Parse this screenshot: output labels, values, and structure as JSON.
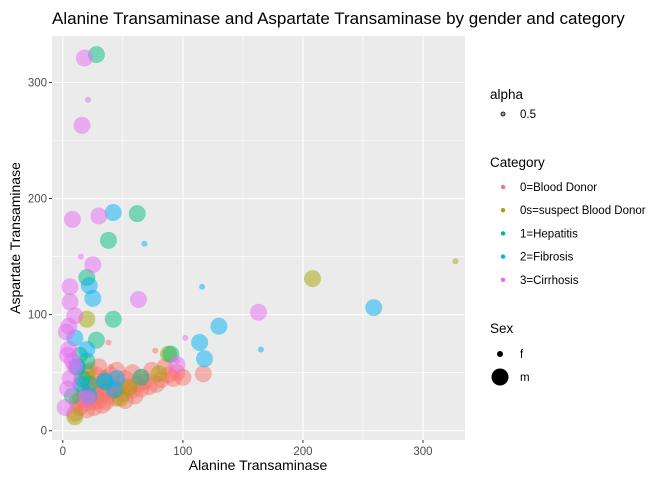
{
  "chart_data": {
    "type": "scatter",
    "title": "Alanine Transaminase and Aspartate Transaminase by gender and category",
    "xlabel": "Alanine Transaminase",
    "ylabel": "Aspartate Transaminase",
    "xlim": [
      -9,
      335
    ],
    "ylim": [
      -8,
      340
    ],
    "x_ticks": [
      0,
      100,
      200,
      300
    ],
    "y_ticks": [
      0,
      100,
      200,
      300
    ],
    "grid": true,
    "legend_position": "right",
    "legends": {
      "alpha": {
        "title": "alpha",
        "entries": [
          "0.5"
        ]
      },
      "category": {
        "title": "Category",
        "entries": [
          {
            "label": "0=Blood Donor",
            "color": "#F8766D"
          },
          {
            "label": "0s=suspect Blood Donor",
            "color": "#A3A500"
          },
          {
            "label": "1=Hepatitis",
            "color": "#00BF7D"
          },
          {
            "label": "2=Fibrosis",
            "color": "#00B0F6"
          },
          {
            "label": "3=Cirrhosis",
            "color": "#E76BF3"
          }
        ]
      },
      "sex": {
        "title": "Sex",
        "entries": [
          "f",
          "m"
        ]
      }
    },
    "series": [
      {
        "name": "0=Blood Donor",
        "color": "#F8766D",
        "points": [
          [
            12,
            18,
            "f"
          ],
          [
            15,
            20,
            "f"
          ],
          [
            18,
            22,
            "f"
          ],
          [
            20,
            25,
            "f"
          ],
          [
            22,
            24,
            "f"
          ],
          [
            25,
            22,
            "f"
          ],
          [
            28,
            25,
            "f"
          ],
          [
            30,
            27,
            "f"
          ],
          [
            35,
            28,
            "f"
          ],
          [
            18,
            28,
            "f"
          ],
          [
            20,
            30,
            "f"
          ],
          [
            24,
            30,
            "f"
          ],
          [
            26,
            32,
            "f"
          ],
          [
            30,
            32,
            "f"
          ],
          [
            33,
            30,
            "f"
          ],
          [
            38,
            28,
            "f"
          ],
          [
            40,
            32,
            "f"
          ],
          [
            45,
            30,
            "f"
          ],
          [
            14,
            23,
            "f"
          ],
          [
            16,
            26,
            "f"
          ],
          [
            22,
            34,
            "f"
          ],
          [
            27,
            36,
            "f"
          ],
          [
            32,
            38,
            "f"
          ],
          [
            42,
            36,
            "f"
          ],
          [
            50,
            34,
            "f"
          ],
          [
            55,
            30,
            "f"
          ],
          [
            60,
            36,
            "f"
          ],
          [
            48,
            40,
            "f"
          ],
          [
            36,
            42,
            "f"
          ],
          [
            28,
            40,
            "f"
          ],
          [
            20,
            36,
            "f"
          ],
          [
            25,
            45,
            "f"
          ],
          [
            35,
            50,
            "f"
          ],
          [
            40,
            55,
            "f"
          ],
          [
            65,
            42,
            "f"
          ],
          [
            70,
            38,
            "f"
          ],
          [
            80,
            44,
            "f"
          ],
          [
            38,
            76,
            "f"
          ],
          [
            77,
            69,
            "f"
          ],
          [
            95,
            48,
            "f"
          ],
          [
            10,
            15,
            "m"
          ],
          [
            14,
            20,
            "m"
          ],
          [
            18,
            24,
            "m"
          ],
          [
            22,
            28,
            "m"
          ],
          [
            25,
            25,
            "m"
          ],
          [
            28,
            30,
            "m"
          ],
          [
            30,
            26,
            "m"
          ],
          [
            32,
            32,
            "m"
          ],
          [
            35,
            35,
            "m"
          ],
          [
            38,
            30,
            "m"
          ],
          [
            40,
            34,
            "m"
          ],
          [
            42,
            38,
            "m"
          ],
          [
            45,
            36,
            "m"
          ],
          [
            48,
            40,
            "m"
          ],
          [
            50,
            32,
            "m"
          ],
          [
            55,
            38,
            "m"
          ],
          [
            58,
            35,
            "m"
          ],
          [
            62,
            40,
            "m"
          ],
          [
            65,
            36,
            "m"
          ],
          [
            68,
            42,
            "m"
          ],
          [
            72,
            38,
            "m"
          ],
          [
            78,
            40,
            "m"
          ],
          [
            82,
            44,
            "m"
          ],
          [
            88,
            48,
            "m"
          ],
          [
            92,
            45,
            "m"
          ],
          [
            95,
            50,
            "m"
          ],
          [
            100,
            46,
            "m"
          ],
          [
            117,
            49,
            "m"
          ],
          [
            20,
            18,
            "m"
          ],
          [
            26,
            20,
            "m"
          ],
          [
            33,
            22,
            "m"
          ],
          [
            36,
            25,
            "m"
          ],
          [
            44,
            28,
            "m"
          ],
          [
            52,
            26,
            "m"
          ],
          [
            60,
            30,
            "m"
          ],
          [
            30,
            40,
            "m"
          ],
          [
            24,
            35,
            "m"
          ],
          [
            18,
            32,
            "m"
          ],
          [
            15,
            28,
            "m"
          ],
          [
            12,
            25,
            "m"
          ],
          [
            35,
            45,
            "m"
          ],
          [
            40,
            48,
            "m"
          ],
          [
            45,
            52,
            "m"
          ],
          [
            30,
            55,
            "m"
          ],
          [
            52,
            45,
            "m"
          ],
          [
            58,
            50,
            "m"
          ],
          [
            20,
            44,
            "m"
          ],
          [
            28,
            48,
            "m"
          ],
          [
            16,
            40,
            "m"
          ],
          [
            22,
            52,
            "m"
          ],
          [
            66,
            46,
            "m"
          ],
          [
            74,
            52,
            "m"
          ],
          [
            85,
            55,
            "m"
          ]
        ]
      },
      {
        "name": "0s=suspect Blood Donor",
        "color": "#A3A500",
        "points": [
          [
            327,
            146,
            "f"
          ],
          [
            208,
            131,
            "m"
          ],
          [
            20,
            96,
            "m"
          ],
          [
            88,
            66,
            "m"
          ],
          [
            80,
            49,
            "m"
          ],
          [
            55,
            37,
            "m"
          ],
          [
            10,
            12,
            "m"
          ],
          [
            20,
            50,
            "m"
          ],
          [
            48,
            28,
            "m"
          ]
        ]
      },
      {
        "name": "1=Hepatitis",
        "color": "#00BF7D",
        "points": [
          [
            28,
            324,
            "m"
          ],
          [
            62,
            187,
            "m"
          ],
          [
            38,
            164,
            "m"
          ],
          [
            20,
            132,
            "m"
          ],
          [
            42,
            96,
            "m"
          ],
          [
            28,
            78,
            "m"
          ],
          [
            14,
            65,
            "m"
          ],
          [
            20,
            60,
            "m"
          ],
          [
            12,
            55,
            "m"
          ],
          [
            16,
            45,
            "m"
          ],
          [
            22,
            40,
            "m"
          ],
          [
            35,
            42,
            "m"
          ],
          [
            65,
            46,
            "m"
          ],
          [
            90,
            66,
            "m"
          ],
          [
            8,
            30,
            "m"
          ]
        ]
      },
      {
        "name": "2=Fibrosis",
        "color": "#00B0F6",
        "points": [
          [
            68,
            161,
            "f"
          ],
          [
            116,
            124,
            "f"
          ],
          [
            165,
            70,
            "f"
          ],
          [
            42,
            188,
            "m"
          ],
          [
            22,
            125,
            "m"
          ],
          [
            25,
            114,
            "m"
          ],
          [
            259,
            106,
            "m"
          ],
          [
            130,
            90,
            "m"
          ],
          [
            114,
            76,
            "m"
          ],
          [
            118,
            62,
            "m"
          ],
          [
            20,
            70,
            "m"
          ],
          [
            10,
            80,
            "m"
          ],
          [
            12,
            55,
            "m"
          ],
          [
            35,
            43,
            "m"
          ],
          [
            43,
            35,
            "m"
          ],
          [
            45,
            45,
            "m"
          ],
          [
            15,
            40,
            "m"
          ],
          [
            22,
            30,
            "m"
          ]
        ]
      },
      {
        "name": "3=Cirrhosis",
        "color": "#E76BF3",
        "points": [
          [
            21,
            285,
            "f"
          ],
          [
            15,
            150,
            "f"
          ],
          [
            102,
            80,
            "f"
          ],
          [
            95,
            60,
            "f"
          ],
          [
            18,
            321,
            "m"
          ],
          [
            16,
            263,
            "m"
          ],
          [
            30,
            185,
            "m"
          ],
          [
            8,
            182,
            "m"
          ],
          [
            25,
            143,
            "m"
          ],
          [
            6,
            124,
            "m"
          ],
          [
            63,
            113,
            "m"
          ],
          [
            6,
            111,
            "m"
          ],
          [
            163,
            102,
            "m"
          ],
          [
            10,
            99,
            "m"
          ],
          [
            5,
            90,
            "m"
          ],
          [
            3,
            85,
            "m"
          ],
          [
            5,
            70,
            "m"
          ],
          [
            4,
            65,
            "m"
          ],
          [
            8,
            60,
            "m"
          ],
          [
            10,
            55,
            "m"
          ],
          [
            6,
            45,
            "m"
          ],
          [
            4,
            36,
            "m"
          ],
          [
            2,
            20,
            "m"
          ],
          [
            95,
            57,
            "m"
          ],
          [
            20,
            28,
            "m"
          ]
        ]
      }
    ]
  }
}
